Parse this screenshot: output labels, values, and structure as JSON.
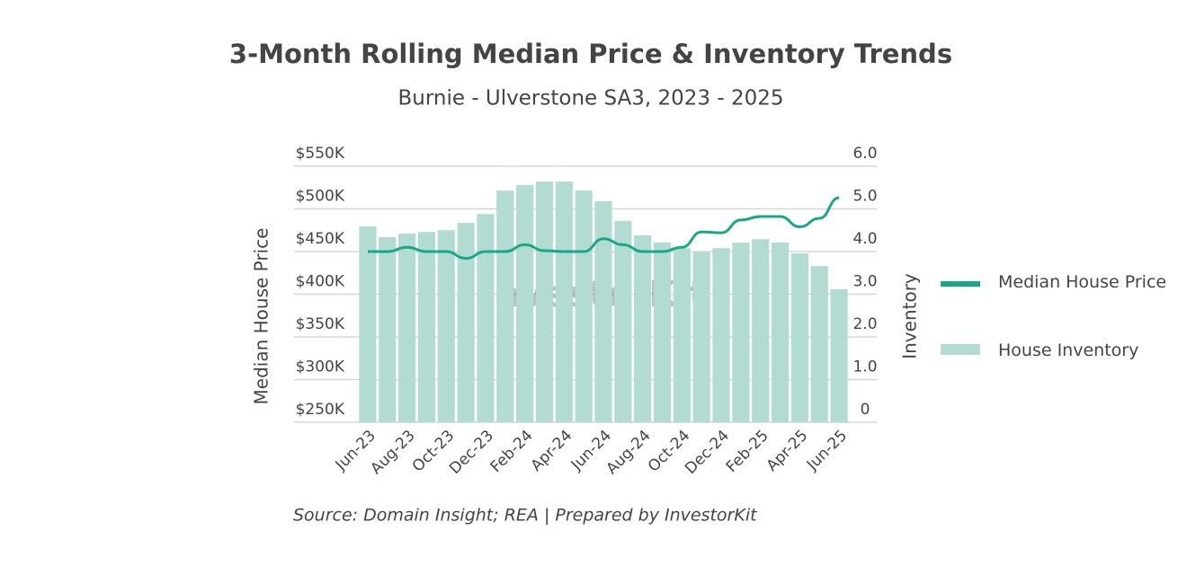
{
  "chart_data": {
    "type": "bar",
    "title": "3-Month Rolling Median Price & Inventory Trends",
    "subtitle": "Burnie - Ulverstone SA3, 2023 - 2025",
    "ylabel": "Median House Price",
    "y2label": "Inventory",
    "watermark": "InvestorKit",
    "source": "Source: Domain Insight; REA | Prepared by InvestorKit",
    "categories": [
      "Jun-23",
      null,
      "Aug-23",
      null,
      "Oct-23",
      null,
      "Dec-23",
      null,
      "Feb-24",
      null,
      "Apr-24",
      null,
      "Jun-24",
      null,
      "Aug-24",
      null,
      "Oct-24",
      null,
      "Dec-24",
      null,
      "Feb-25",
      null,
      "Apr-25",
      null,
      "Jun-25"
    ],
    "series": [
      {
        "name": "Median House Price",
        "type": "line",
        "axis": "y",
        "color": "#17a887",
        "values": [
          450000,
          450000,
          455000,
          450000,
          450000,
          442000,
          450000,
          450000,
          458000,
          451000,
          450000,
          450000,
          465000,
          458000,
          450000,
          450000,
          455000,
          473000,
          472000,
          487000,
          491000,
          491000,
          479000,
          489000,
          513000
        ]
      },
      {
        "name": "House Inventory",
        "type": "bar",
        "axis": "y2",
        "color": "#b2dcd2",
        "values": [
          4.59,
          4.34,
          4.42,
          4.46,
          4.5,
          4.67,
          4.88,
          5.43,
          5.56,
          5.64,
          5.64,
          5.43,
          5.18,
          4.72,
          4.38,
          4.21,
          4.08,
          4.0,
          4.08,
          4.21,
          4.29,
          4.21,
          3.96,
          3.66,
          3.12
        ]
      }
    ],
    "ylim": [
      250000,
      550000
    ],
    "yticks": [
      {
        "value": 250000,
        "label": "$250K"
      },
      {
        "value": 300000,
        "label": "$300K"
      },
      {
        "value": 350000,
        "label": "$350K"
      },
      {
        "value": 400000,
        "label": "$400K"
      },
      {
        "value": 450000,
        "label": "$450K"
      },
      {
        "value": 500000,
        "label": "$500K"
      },
      {
        "value": 550000,
        "label": "$550K"
      }
    ],
    "y2lim": [
      0,
      6
    ],
    "y2ticks": [
      0,
      {
        "value": 1,
        "label": "1.0"
      },
      {
        "value": 2,
        "label": "2.0"
      },
      {
        "value": 3,
        "label": "3.0"
      },
      {
        "value": 4,
        "label": "4.0"
      },
      {
        "value": 5,
        "label": "5.0"
      },
      {
        "value": 6,
        "label": "6.0"
      }
    ],
    "grid": true,
    "legend": "right"
  }
}
